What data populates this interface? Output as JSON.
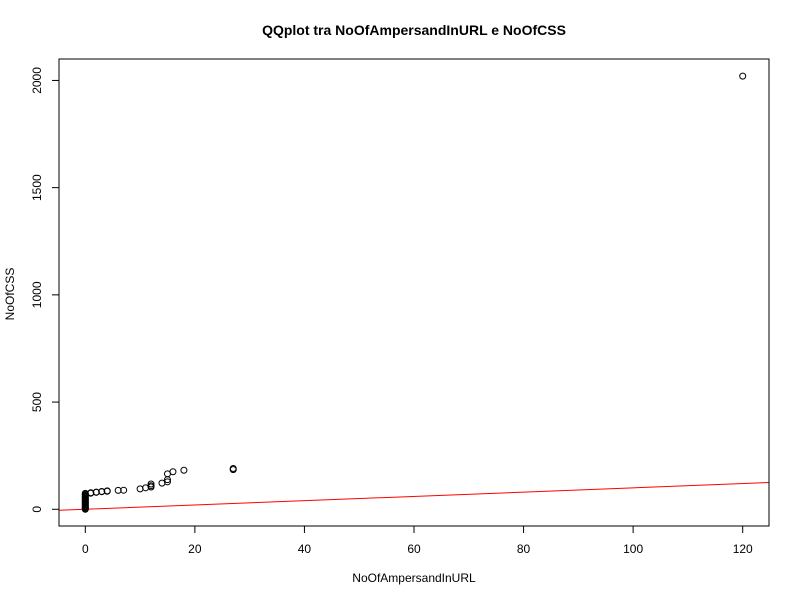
{
  "chart_data": {
    "type": "scatter",
    "title": "QQplot tra NoOfAmpersandInURL e NoOfCSS",
    "xlabel": "NoOfAmpersandInURL",
    "ylabel": "NoOfCSS",
    "xlim": [
      -4.8,
      124.8
    ],
    "ylim": [
      -78,
      2100
    ],
    "x_ticks": [
      0,
      20,
      40,
      60,
      80,
      100,
      120
    ],
    "x_tick_labels": [
      "0",
      "20",
      "40",
      "60",
      "80",
      "100",
      "120"
    ],
    "y_ticks": [
      0,
      500,
      1000,
      1500,
      2000
    ],
    "y_tick_labels": [
      "0",
      "500",
      "1000",
      "1500",
      "2000"
    ],
    "points": [
      [
        0,
        0
      ],
      [
        0,
        3
      ],
      [
        0,
        6
      ],
      [
        0,
        10
      ],
      [
        0,
        14
      ],
      [
        0,
        18
      ],
      [
        0,
        22
      ],
      [
        0,
        26
      ],
      [
        0,
        30
      ],
      [
        0,
        34
      ],
      [
        0,
        38
      ],
      [
        0,
        42
      ],
      [
        0,
        46
      ],
      [
        0,
        50
      ],
      [
        0,
        54
      ],
      [
        0,
        58
      ],
      [
        0,
        62
      ],
      [
        0,
        66
      ],
      [
        0,
        70
      ],
      [
        0,
        74
      ],
      [
        1,
        75
      ],
      [
        1,
        77
      ],
      [
        2,
        79
      ],
      [
        2,
        80
      ],
      [
        3,
        82
      ],
      [
        3,
        83
      ],
      [
        4,
        84
      ],
      [
        4,
        86
      ],
      [
        6,
        88
      ],
      [
        7,
        89
      ],
      [
        10,
        95
      ],
      [
        11,
        100
      ],
      [
        12,
        104
      ],
      [
        12,
        110
      ],
      [
        12,
        118
      ],
      [
        14,
        122
      ],
      [
        15,
        128
      ],
      [
        15,
        138
      ],
      [
        15,
        165
      ],
      [
        16,
        175
      ],
      [
        18,
        182
      ],
      [
        27,
        185
      ],
      [
        27,
        190
      ],
      [
        120,
        2020
      ]
    ],
    "reference_line": {
      "slope": 1,
      "intercept": 0,
      "color": "#ff0000"
    },
    "point_color": "#000000",
    "grid": false
  }
}
